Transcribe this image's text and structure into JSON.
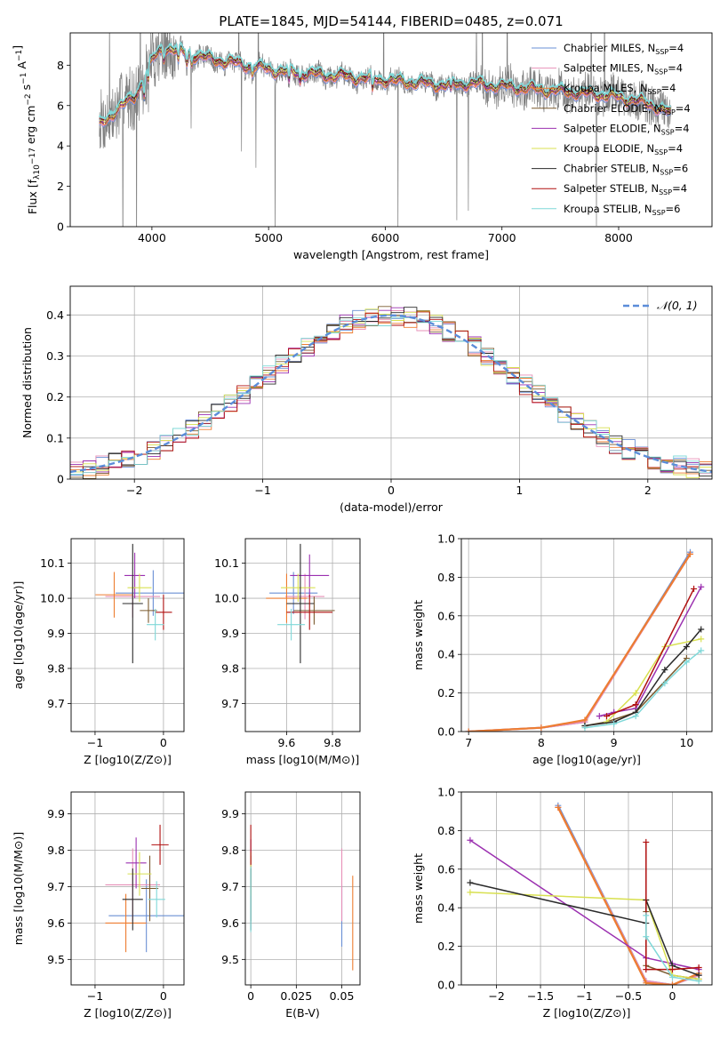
{
  "title": "PLATE=1845, MJD=54144, FIBERID=0485, z=0.071",
  "model_names": [
    "Chabrier MILES, N_SSP=4",
    "Salpeter MILES, N_SSP=4",
    "Kroupa MILES, N_SSP=4",
    "Chabrier ELODIE, N_SSP=4",
    "Salpeter ELODIE, N_SSP=4",
    "Kroupa ELODIE, N_SSP=4",
    "Chabrier STELIB, N_SSP=6",
    "Salpeter STELIB, N_SSP=4",
    "Kroupa STELIB, N_SSP=6"
  ],
  "colors": {
    "data": "#808080",
    "models": [
      "#6a8fd4",
      "#e790b8",
      "#ed7d31",
      "#7b5a2e",
      "#9b30b0",
      "#d8e050",
      "#2a2a2a",
      "#b01010",
      "#7fd8d8"
    ],
    "gaussian": "#5b8dd9",
    "grid": "#b0b0b0"
  },
  "chart_data": [
    {
      "id": "spectrum",
      "type": "line",
      "xlabel": "wavelength [Angstrom, rest frame]",
      "ylabel": "Flux [f_λ10^-17 erg cm^-2 s^-1 A^-1]",
      "xlim": [
        3300,
        8800
      ],
      "ylim": [
        0,
        9.6
      ],
      "xticks": [
        4000,
        5000,
        6000,
        7000,
        8000
      ],
      "yticks": [
        0,
        2,
        4,
        6,
        8
      ],
      "legend": "top-right",
      "continuum": {
        "x": [
          3550,
          3700,
          3850,
          4000,
          4100,
          4300,
          4500,
          4700,
          4900,
          5100,
          5300,
          5500,
          5700,
          5900,
          6100,
          6300,
          6500,
          6700,
          6900,
          7100,
          7300,
          7500,
          7700,
          7900,
          8100,
          8300,
          8450
        ],
        "y": [
          5.0,
          5.8,
          6.4,
          8.2,
          8.9,
          8.6,
          8.3,
          8.1,
          7.9,
          7.7,
          7.6,
          7.5,
          7.4,
          7.3,
          7.2,
          7.1,
          7.0,
          7.1,
          7.0,
          6.9,
          6.8,
          6.7,
          6.6,
          6.5,
          6.3,
          6.0,
          5.6
        ]
      }
    },
    {
      "id": "residuals",
      "type": "line",
      "xlabel": "(data-model)/error",
      "ylabel": "Normed distribution",
      "xlim": [
        -2.5,
        2.5
      ],
      "ylim": [
        0,
        0.47
      ],
      "xticks": [
        -2,
        -1,
        0,
        1,
        2
      ],
      "yticks": [
        0.0,
        0.1,
        0.2,
        0.3,
        0.4
      ],
      "legend": "top-right",
      "gaussian_label": "𝒩(0, 1)",
      "bin_width": 0.1
    },
    {
      "id": "age-vs-Z",
      "type": "scatter",
      "xlabel": "Z [log10(Z/Z⊙)]",
      "ylabel": "age [log10(age/yr)]",
      "xlim": [
        -1.35,
        0.3
      ],
      "ylim": [
        9.62,
        10.17
      ],
      "xticks": [
        -1,
        0
      ],
      "yticks": [
        9.7,
        9.8,
        9.9,
        10.0,
        10.1
      ],
      "points": [
        {
          "x": -0.15,
          "xerr": 1.1,
          "y": 10.015,
          "yerr": 0.13
        },
        {
          "x": -0.45,
          "xerr": 0.8,
          "y": 10.005,
          "yerr": 0.12
        },
        {
          "x": -0.72,
          "xerr": 0.55,
          "y": 10.01,
          "yerr": 0.13
        },
        {
          "x": -0.22,
          "xerr": 0.25,
          "y": 9.965,
          "yerr": 0.07
        },
        {
          "x": -0.42,
          "xerr": 0.3,
          "y": 10.065,
          "yerr": 0.13
        },
        {
          "x": -0.35,
          "xerr": 0.35,
          "y": 10.03,
          "yerr": 0.08
        },
        {
          "x": -0.45,
          "xerr": 0.3,
          "y": 9.985,
          "yerr": 0.34
        },
        {
          "x": 0.0,
          "xerr": 0.25,
          "y": 9.96,
          "yerr": 0.1
        },
        {
          "x": -0.12,
          "xerr": 0.25,
          "y": 9.925,
          "yerr": 0.09
        }
      ]
    },
    {
      "id": "age-vs-mass",
      "type": "scatter",
      "xlabel": "mass [log10(M/M⊙)]",
      "ylabel": "",
      "xlim": [
        9.42,
        9.92
      ],
      "ylim": [
        9.62,
        10.17
      ],
      "xticks": [
        9.6,
        9.8
      ],
      "yticks": [
        9.7,
        9.8,
        9.9,
        10.0,
        10.1
      ],
      "points": [
        {
          "x": 9.63,
          "xerr": 0.21,
          "y": 10.015,
          "yerr": 0.12
        },
        {
          "x": 9.68,
          "xerr": 0.17,
          "y": 10.005,
          "yerr": 0.13
        },
        {
          "x": 9.6,
          "xerr": 0.18,
          "y": 10.0,
          "yerr": 0.14
        },
        {
          "x": 9.72,
          "xerr": 0.18,
          "y": 9.965,
          "yerr": 0.08
        },
        {
          "x": 9.7,
          "xerr": 0.17,
          "y": 10.065,
          "yerr": 0.12
        },
        {
          "x": 9.65,
          "xerr": 0.15,
          "y": 10.03,
          "yerr": 0.08
        },
        {
          "x": 9.66,
          "xerr": 0.12,
          "y": 9.985,
          "yerr": 0.34
        },
        {
          "x": 9.7,
          "xerr": 0.2,
          "y": 9.96,
          "yerr": 0.1
        },
        {
          "x": 9.62,
          "xerr": 0.12,
          "y": 9.925,
          "yerr": 0.09
        }
      ]
    },
    {
      "id": "mass-weight-vs-age",
      "type": "line",
      "xlabel": "age [log10(age/yr)]",
      "ylabel": "mass weight",
      "xlim": [
        6.9,
        10.35
      ],
      "ylim": [
        0,
        1.0
      ],
      "xticks": [
        7,
        8,
        9,
        10
      ],
      "yticks": [
        0.0,
        0.2,
        0.4,
        0.6,
        0.8,
        1.0
      ],
      "series": [
        {
          "x": [
            7.0,
            8.0,
            8.6,
            10.05
          ],
          "y": [
            0.0,
            0.02,
            0.05,
            0.93
          ]
        },
        {
          "x": [
            7.0,
            8.0,
            8.6,
            10.05
          ],
          "y": [
            0.0,
            0.02,
            0.05,
            0.92
          ]
        },
        {
          "x": [
            7.0,
            8.0,
            8.6,
            10.05
          ],
          "y": [
            0.0,
            0.02,
            0.06,
            0.92
          ]
        },
        {
          "x": [
            8.6,
            8.9,
            9.3,
            10.0
          ],
          "y": [
            0.03,
            0.05,
            0.1,
            0.38
          ]
        },
        {
          "x": [
            8.8,
            9.0,
            9.3,
            10.2
          ],
          "y": [
            0.08,
            0.1,
            0.12,
            0.75
          ]
        },
        {
          "x": [
            8.9,
            9.3,
            9.7,
            10.2
          ],
          "y": [
            0.05,
            0.2,
            0.44,
            0.48
          ]
        },
        {
          "x": [
            8.6,
            9.0,
            9.3,
            9.7,
            10.0,
            10.2
          ],
          "y": [
            0.03,
            0.05,
            0.1,
            0.32,
            0.44,
            0.53
          ]
        },
        {
          "x": [
            8.9,
            9.3,
            10.1
          ],
          "y": [
            0.08,
            0.14,
            0.74
          ]
        },
        {
          "x": [
            8.6,
            9.0,
            9.3,
            9.7,
            10.0,
            10.2
          ],
          "y": [
            0.02,
            0.04,
            0.08,
            0.25,
            0.36,
            0.42
          ]
        }
      ]
    },
    {
      "id": "mass-vs-Z",
      "type": "scatter",
      "xlabel": "Z [log10(Z/Z⊙)]",
      "ylabel": "mass [log10(M/M⊙)]",
      "xlim": [
        -1.35,
        0.3
      ],
      "ylim": [
        9.43,
        9.96
      ],
      "xticks": [
        -1,
        0
      ],
      "yticks": [
        9.5,
        9.6,
        9.7,
        9.8,
        9.9
      ],
      "points": [
        {
          "x": -0.25,
          "xerr": 1.1,
          "y": 9.62,
          "yerr": 0.2
        },
        {
          "x": -0.45,
          "xerr": 0.8,
          "y": 9.705,
          "yerr": 0.2
        },
        {
          "x": -0.55,
          "xerr": 0.6,
          "y": 9.6,
          "yerr": 0.16
        },
        {
          "x": -0.2,
          "xerr": 0.25,
          "y": 9.695,
          "yerr": 0.18
        },
        {
          "x": -0.4,
          "xerr": 0.3,
          "y": 9.765,
          "yerr": 0.14
        },
        {
          "x": -0.35,
          "xerr": 0.35,
          "y": 9.735,
          "yerr": 0.12
        },
        {
          "x": -0.45,
          "xerr": 0.3,
          "y": 9.665,
          "yerr": 0.17
        },
        {
          "x": -0.05,
          "xerr": 0.25,
          "y": 9.815,
          "yerr": 0.11
        },
        {
          "x": -0.1,
          "xerr": 0.25,
          "y": 9.665,
          "yerr": 0.1
        }
      ]
    },
    {
      "id": "mass-vs-ebv",
      "type": "scatter",
      "xlabel": "E(B-V)",
      "ylabel": "",
      "xlim": [
        -0.003,
        0.06
      ],
      "ylim": [
        9.43,
        9.96
      ],
      "xticks": [
        0.0,
        0.025,
        0.05
      ],
      "yticks": [
        9.5,
        9.6,
        9.7,
        9.8,
        9.9
      ],
      "points": [
        {
          "x": 0.05,
          "xerr": 0,
          "y": 9.62,
          "yerr": 0.17
        },
        {
          "x": 0.05,
          "xerr": 0,
          "y": 9.705,
          "yerr": 0.2
        },
        {
          "x": 0.056,
          "xerr": 0,
          "y": 9.6,
          "yerr": 0.26
        },
        {
          "x": 0.0,
          "xerr": 0,
          "y": 9.695,
          "yerr": 0.18
        },
        {
          "x": 0.0,
          "xerr": 0,
          "y": 9.765,
          "yerr": 0.13
        },
        {
          "x": 0.0,
          "xerr": 0,
          "y": 9.735,
          "yerr": 0.12
        },
        {
          "x": 0.0,
          "xerr": 0,
          "y": 9.665,
          "yerr": 0.17
        },
        {
          "x": 0.0,
          "xerr": 0,
          "y": 9.815,
          "yerr": 0.11
        },
        {
          "x": 0.0,
          "xerr": 0,
          "y": 9.665,
          "yerr": 0.18
        }
      ]
    },
    {
      "id": "mass-weight-vs-Z",
      "type": "line",
      "xlabel": "Z [log10(Z/Z⊙)]",
      "ylabel": "mass weight",
      "xlim": [
        -2.4,
        0.45
      ],
      "ylim": [
        0,
        1.0
      ],
      "xticks": [
        -2.0,
        -1.5,
        -1.0,
        -0.5,
        0.0
      ],
      "yticks": [
        0.0,
        0.2,
        0.4,
        0.6,
        0.8,
        1.0
      ],
      "series": [
        {
          "x": [
            -1.3,
            -0.3,
            0.0,
            0.3
          ],
          "y": [
            0.93,
            0.02,
            0.0,
            0.05
          ]
        },
        {
          "x": [
            -1.3,
            -0.3,
            0.0,
            0.3
          ],
          "y": [
            0.92,
            0.02,
            0.0,
            0.05
          ]
        },
        {
          "x": [
            -1.3,
            -0.3,
            0.0,
            0.3
          ],
          "y": [
            0.92,
            0.01,
            0.0,
            0.06
          ]
        },
        {
          "x": [
            -0.3,
            -0.3,
            0.0,
            0.3
          ],
          "y": [
            0.38,
            0.1,
            0.05,
            0.03
          ]
        },
        {
          "x": [
            -2.3,
            -0.3,
            0.0,
            0.3
          ],
          "y": [
            0.75,
            0.14,
            0.11,
            0.08
          ]
        },
        {
          "x": [
            -2.3,
            -0.3,
            0.0,
            0.3
          ],
          "y": [
            0.48,
            0.44,
            0.05,
            0.03
          ]
        },
        {
          "x": [
            -2.3,
            -0.3,
            -0.3,
            0.0,
            0.3
          ],
          "y": [
            0.53,
            0.32,
            0.44,
            0.1,
            0.05
          ]
        },
        {
          "x": [
            -0.3,
            -0.3,
            0.0,
            0.3
          ],
          "y": [
            0.74,
            0.08,
            0.08,
            0.09
          ]
        },
        {
          "x": [
            -0.3,
            -0.3,
            0.0,
            0.3
          ],
          "y": [
            0.36,
            0.25,
            0.04,
            0.02
          ]
        }
      ]
    }
  ]
}
